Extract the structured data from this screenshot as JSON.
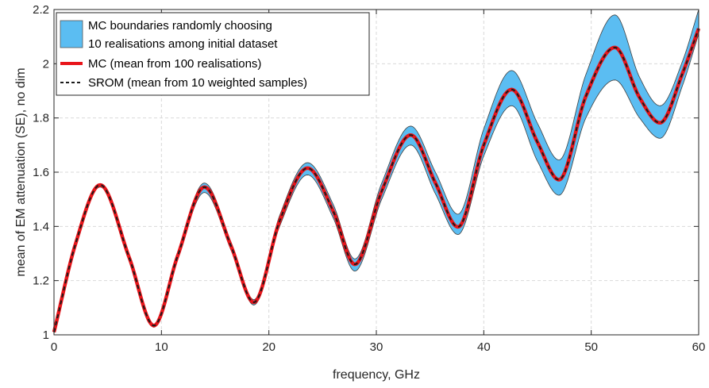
{
  "chart_data": {
    "type": "line",
    "xlabel": "frequency, GHz",
    "ylabel": "mean of EM attenuation (SE), no dim",
    "xlim": [
      0,
      60
    ],
    "ylim": [
      1,
      2.2
    ],
    "xticks": [
      0,
      10,
      20,
      30,
      40,
      50,
      60
    ],
    "yticks": [
      1,
      1.2,
      1.4,
      1.6,
      1.8,
      2,
      2.2
    ],
    "xtick_labels": [
      "0",
      "10",
      "20",
      "30",
      "40",
      "50",
      "60"
    ],
    "ytick_labels": [
      "1",
      "1.2",
      "1.4",
      "1.6",
      "1.8",
      "2",
      "2.2"
    ],
    "grid": true,
    "legend_position": "top-left",
    "x": [
      0,
      2,
      4.3,
      7,
      9.3,
      11.5,
      14,
      16.5,
      18.6,
      21,
      23.6,
      26,
      28,
      30.5,
      33.2,
      35.5,
      37.6,
      40,
      42.6,
      45,
      47,
      49.5,
      52.2,
      54.5,
      56.4,
      58.5,
      60
    ],
    "series": [
      {
        "name": "MC boundaries randomly choosing 10 realisations among initial dataset",
        "kind": "band",
        "color": "#5bbdf2",
        "upper": [
          1.012,
          1.34,
          1.557,
          1.29,
          1.04,
          1.3,
          1.56,
          1.34,
          1.13,
          1.44,
          1.635,
          1.48,
          1.28,
          1.56,
          1.77,
          1.6,
          1.445,
          1.76,
          1.975,
          1.78,
          1.645,
          1.96,
          2.18,
          1.95,
          1.845,
          2.01,
          2.2
        ],
        "lower": [
          1.008,
          1.33,
          1.545,
          1.28,
          1.028,
          1.28,
          1.525,
          1.31,
          1.11,
          1.4,
          1.59,
          1.43,
          1.235,
          1.5,
          1.7,
          1.52,
          1.37,
          1.66,
          1.845,
          1.64,
          1.515,
          1.8,
          1.94,
          1.8,
          1.725,
          1.92,
          2.11
        ]
      },
      {
        "name": "MC (mean from 100 realisations)",
        "kind": "line",
        "color": "#e8141a",
        "values": [
          1.01,
          1.335,
          1.553,
          1.285,
          1.034,
          1.29,
          1.545,
          1.325,
          1.12,
          1.42,
          1.615,
          1.455,
          1.26,
          1.53,
          1.737,
          1.56,
          1.398,
          1.7,
          1.905,
          1.71,
          1.572,
          1.88,
          2.06,
          1.875,
          1.782,
          1.965,
          2.13
        ]
      },
      {
        "name": "SROM (mean from 10 weighted samples)",
        "kind": "line",
        "style": "dashed",
        "color": "#1a1a1a",
        "values": [
          1.01,
          1.335,
          1.553,
          1.285,
          1.034,
          1.29,
          1.545,
          1.325,
          1.12,
          1.42,
          1.615,
          1.455,
          1.26,
          1.53,
          1.737,
          1.56,
          1.398,
          1.7,
          1.905,
          1.71,
          1.572,
          1.88,
          2.06,
          1.875,
          1.782,
          1.965,
          2.13
        ]
      }
    ],
    "legend": {
      "entries": [
        {
          "line1": "MC boundaries randomly choosing",
          "line2": "10 realisations among initial dataset"
        },
        {
          "line1": "MC (mean from 100 realisations)"
        },
        {
          "line1": "SROM (mean from 10 weighted samples)"
        }
      ]
    }
  }
}
